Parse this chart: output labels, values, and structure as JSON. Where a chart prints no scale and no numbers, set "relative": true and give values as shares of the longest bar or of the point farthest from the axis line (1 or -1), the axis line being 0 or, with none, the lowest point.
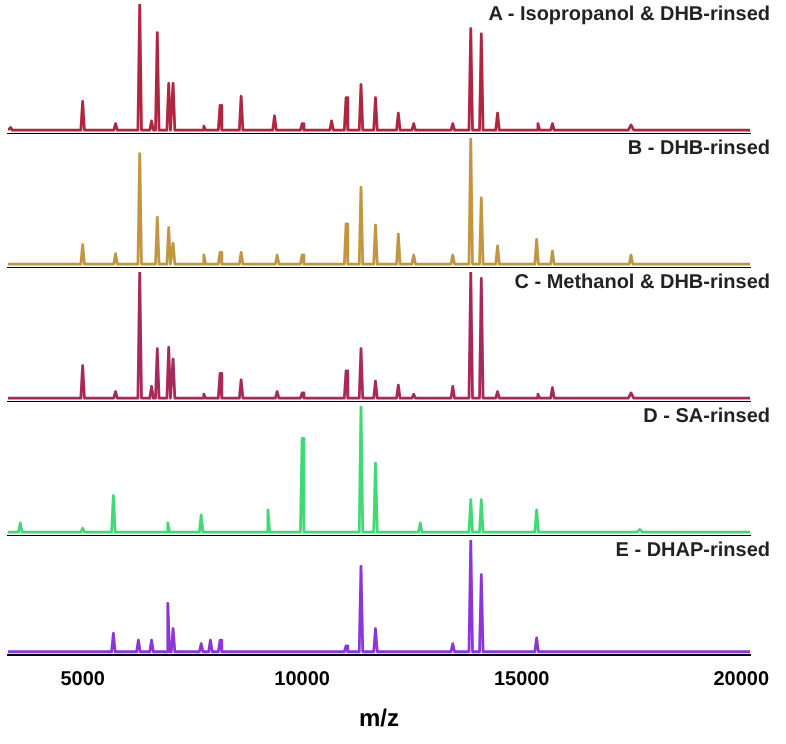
{
  "chart_data": [
    {
      "type": "line",
      "title": "A - Isopropanol & DHB-rinsed",
      "relative": true,
      "tick_labels": false,
      "xlim": [
        3300,
        20200
      ],
      "color": "#b0253f",
      "x": [
        3300,
        3320,
        3360,
        3400,
        4960,
        5000,
        5040,
        5710,
        5750,
        5790,
        6260,
        6300,
        6340,
        6530,
        6570,
        6610,
        6660,
        6700,
        6740,
        6920,
        6960,
        7000,
        7020,
        7060,
        7100,
        7720,
        7760,
        7800,
        8090,
        8130,
        8170,
        8570,
        8610,
        8650,
        9330,
        9370,
        9410,
        9960,
        10000,
        10040,
        10630,
        10670,
        10710,
        10960,
        11000,
        11040,
        11300,
        11340,
        11380,
        11630,
        11670,
        11710,
        12150,
        12190,
        12230,
        12500,
        12540,
        12580,
        13390,
        13430,
        13470,
        13800,
        13840,
        13880,
        14040,
        14080,
        14120,
        14410,
        14450,
        14490,
        15330,
        15370,
        15410,
        15660,
        15700,
        15740,
        17430,
        17490,
        17550,
        20200
      ],
      "values": [
        0.03,
        0.03,
        0.05,
        0.03,
        0.03,
        0.25,
        0.03,
        0.03,
        0.08,
        0.03,
        0.03,
        1,
        0.03,
        0.03,
        0.1,
        0.03,
        0.03,
        0.78,
        0.03,
        0.03,
        0.39,
        0.03,
        0.03,
        0.39,
        0.03,
        0.03,
        0.06,
        0.03,
        0.03,
        0.22,
        0.03,
        0.03,
        0.29,
        0.03,
        0.03,
        0.14,
        0.03,
        0.03,
        0.08,
        0.03,
        0.03,
        0.1,
        0.03,
        0.03,
        0.28,
        0.03,
        0.03,
        0.38,
        0.03,
        0.03,
        0.28,
        0.03,
        0.03,
        0.16,
        0.03,
        0.03,
        0.08,
        0.03,
        0.03,
        0.08,
        0.03,
        0.03,
        0.81,
        0.03,
        0.03,
        0.77,
        0.03,
        0.03,
        0.16,
        0.03,
        0.03,
        0.08,
        0.03,
        0.03,
        0.08,
        0.03,
        0.03,
        0.07,
        0.03,
        0.03
      ]
    },
    {
      "type": "line",
      "title": "B - DHB-rinsed",
      "relative": true,
      "tick_labels": false,
      "xlim": [
        3300,
        20200
      ],
      "color": "#c29540",
      "x": [
        3300,
        4960,
        5000,
        5040,
        5710,
        5750,
        5790,
        6260,
        6300,
        6340,
        6660,
        6700,
        6740,
        6920,
        6960,
        7000,
        7020,
        7060,
        7100,
        7720,
        7760,
        7800,
        8090,
        8130,
        8170,
        8570,
        8610,
        8650,
        9390,
        9430,
        9470,
        9960,
        10000,
        10040,
        10960,
        11000,
        11040,
        11300,
        11340,
        11380,
        11630,
        11670,
        11710,
        12150,
        12190,
        12230,
        12500,
        12540,
        12580,
        13390,
        13430,
        13470,
        13800,
        13840,
        13880,
        14040,
        14080,
        14120,
        14410,
        14450,
        14490,
        15300,
        15340,
        15380,
        15660,
        15700,
        15740,
        17450,
        17490,
        17530,
        20200
      ],
      "values": [
        0.03,
        0.03,
        0.18,
        0.03,
        0.03,
        0.11,
        0.03,
        0.03,
        0.88,
        0.03,
        0.03,
        0.39,
        0.03,
        0.03,
        0.31,
        0.03,
        0.03,
        0.19,
        0.03,
        0.03,
        0.1,
        0.03,
        0.03,
        0.12,
        0.03,
        0.03,
        0.12,
        0.03,
        0.03,
        0.1,
        0.03,
        0.03,
        0.1,
        0.03,
        0.03,
        0.34,
        0.03,
        0.03,
        0.62,
        0.03,
        0.03,
        0.33,
        0.03,
        0.03,
        0.26,
        0.03,
        0.03,
        0.1,
        0.03,
        0.03,
        0.1,
        0.03,
        0.03,
        1,
        0.03,
        0.03,
        0.54,
        0.03,
        0.03,
        0.17,
        0.03,
        0.03,
        0.22,
        0.03,
        0.03,
        0.13,
        0.03,
        0.03,
        0.1,
        0.03,
        0.03
      ]
    },
    {
      "type": "line",
      "title": "C - Methanol & DHB-rinsed",
      "relative": true,
      "tick_labels": false,
      "xlim": [
        3300,
        20200
      ],
      "color": "#a8285a",
      "x": [
        3300,
        4960,
        5000,
        5040,
        5710,
        5750,
        5790,
        6260,
        6300,
        6340,
        6530,
        6570,
        6610,
        6660,
        6700,
        6740,
        6920,
        6960,
        7000,
        7020,
        7060,
        7100,
        7720,
        7760,
        7800,
        8090,
        8130,
        8170,
        8570,
        8610,
        8650,
        9390,
        9430,
        9470,
        9960,
        10000,
        10040,
        10960,
        11000,
        11040,
        11300,
        11340,
        11380,
        11630,
        11670,
        11710,
        12150,
        12190,
        12230,
        12500,
        12540,
        12580,
        13390,
        13430,
        13470,
        13800,
        13840,
        13880,
        14040,
        14080,
        14120,
        14410,
        14450,
        14490,
        15330,
        15370,
        15410,
        15660,
        15700,
        15740,
        17430,
        17490,
        17550,
        20200
      ],
      "values": [
        0.03,
        0.03,
        0.28,
        0.03,
        0.03,
        0.08,
        0.03,
        0.03,
        1,
        0.03,
        0.03,
        0.12,
        0.03,
        0.03,
        0.41,
        0.03,
        0.03,
        0.42,
        0.03,
        0.03,
        0.33,
        0.03,
        0.03,
        0.06,
        0.03,
        0.03,
        0.22,
        0.03,
        0.03,
        0.17,
        0.03,
        0.03,
        0.08,
        0.03,
        0.03,
        0.07,
        0.03,
        0.03,
        0.24,
        0.03,
        0.03,
        0.41,
        0.03,
        0.03,
        0.16,
        0.03,
        0.03,
        0.13,
        0.03,
        0.03,
        0.06,
        0.03,
        0.03,
        0.12,
        0.03,
        0.03,
        1,
        0.03,
        0.03,
        0.95,
        0.03,
        0.03,
        0.08,
        0.03,
        0.03,
        0.06,
        0.03,
        0.03,
        0.11,
        0.03,
        0.03,
        0.07,
        0.03,
        0.03
      ]
    },
    {
      "type": "line",
      "title": "D - SA-rinsed",
      "relative": true,
      "tick_labels": false,
      "xlim": [
        3300,
        20200
      ],
      "color": "#3fd975",
      "x": [
        3300,
        3540,
        3580,
        3620,
        4960,
        5000,
        5040,
        5660,
        5700,
        5740,
        6900,
        6940,
        6980,
        7660,
        7700,
        7740,
        9180,
        9220,
        9260,
        9960,
        10000,
        10040,
        11300,
        11340,
        11380,
        11630,
        11670,
        11710,
        12650,
        12690,
        12730,
        13800,
        13840,
        13880,
        14040,
        14080,
        14120,
        15300,
        15340,
        15380,
        17630,
        17690,
        17750,
        20200
      ],
      "values": [
        0.03,
        0.03,
        0.1,
        0.03,
        0.03,
        0.06,
        0.03,
        0.03,
        0.31,
        0.03,
        0.03,
        0.1,
        0.03,
        0.03,
        0.16,
        0.03,
        0.03,
        0.2,
        0.03,
        0.03,
        0.75,
        0.03,
        0.03,
        1,
        0.03,
        0.03,
        0.56,
        0.03,
        0.03,
        0.1,
        0.03,
        0.03,
        0.28,
        0.03,
        0.03,
        0.28,
        0.03,
        0.03,
        0.2,
        0.03,
        0.03,
        0.05,
        0.03,
        0.03
      ]
    },
    {
      "type": "line",
      "title": "E - DHAP-rinsed",
      "relative": true,
      "tick_labels": "x",
      "xlabel": "m/z",
      "xlim": [
        3300,
        20200
      ],
      "xticks": [
        5000,
        10000,
        15000,
        20000
      ],
      "color": "#8d35d8",
      "x": [
        3300,
        5660,
        5700,
        5740,
        6230,
        6270,
        6310,
        6530,
        6570,
        6610,
        6900,
        6940,
        6980,
        7020,
        7060,
        7100,
        7660,
        7700,
        7740,
        7870,
        7910,
        7950,
        8090,
        8130,
        8170,
        10960,
        11000,
        11040,
        11300,
        11340,
        11380,
        11630,
        11670,
        11710,
        13390,
        13430,
        13470,
        13800,
        13840,
        13880,
        14040,
        14080,
        14120,
        15300,
        15340,
        15380,
        20200
      ],
      "values": [
        0.03,
        0.03,
        0.19,
        0.03,
        0.03,
        0.13,
        0.03,
        0.03,
        0.13,
        0.03,
        0.03,
        0.45,
        0.03,
        0.03,
        0.23,
        0.03,
        0.03,
        0.1,
        0.03,
        0.03,
        0.13,
        0.03,
        0.03,
        0.13,
        0.03,
        0.03,
        0.08,
        0.03,
        0.03,
        0.77,
        0.03,
        0.03,
        0.23,
        0.03,
        0.03,
        0.1,
        0.03,
        0.03,
        1,
        0.03,
        0.03,
        0.7,
        0.03,
        0.03,
        0.15,
        0.03,
        0.03
      ]
    }
  ]
}
